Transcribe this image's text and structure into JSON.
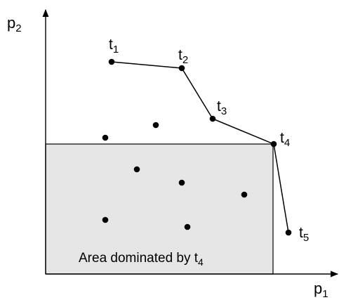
{
  "axes": {
    "y_label": "p",
    "y_label_sub": "2",
    "x_label": "p",
    "x_label_sub": "1"
  },
  "region": {
    "label": "Area dominated by t",
    "label_sub": "4"
  },
  "skyline_points": [
    {
      "name": "t",
      "sub": "1"
    },
    {
      "name": "t",
      "sub": "2"
    },
    {
      "name": "t",
      "sub": "3"
    },
    {
      "name": "t",
      "sub": "4"
    },
    {
      "name": "t",
      "sub": "5"
    }
  ],
  "colors": {
    "region_fill": "#e6e6e6",
    "ink": "#000000"
  }
}
